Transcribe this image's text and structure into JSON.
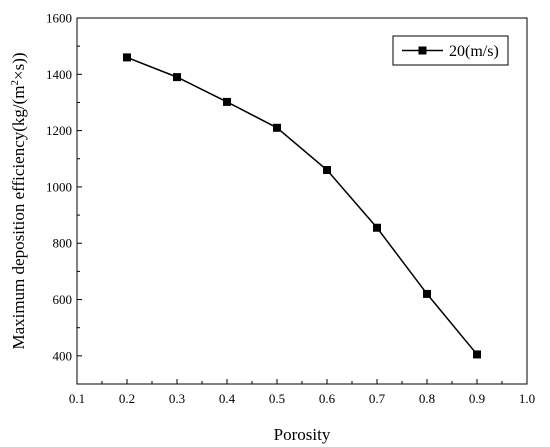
{
  "chart_data": {
    "type": "line",
    "title": "",
    "xlabel": "Porosity",
    "ylabel_main": "Maximum deposition efficiency(kg/(m",
    "ylabel_sup": "2",
    "ylabel_tail": "×s))",
    "xlim": [
      0.1,
      1.0
    ],
    "ylim": [
      300,
      1600
    ],
    "xticks": [
      "0.1",
      "0.2",
      "0.3",
      "0.4",
      "0.5",
      "0.6",
      "0.7",
      "0.8",
      "0.9",
      "1.0"
    ],
    "yticks": [
      "400",
      "600",
      "800",
      "1000",
      "1200",
      "1400",
      "1600"
    ],
    "legend_position": "top-right",
    "grid": false,
    "series": [
      {
        "name": "20(m/s)",
        "color": "#000000",
        "marker": "square",
        "x": [
          0.2,
          0.3,
          0.4,
          0.5,
          0.6,
          0.7,
          0.8,
          0.9
        ],
        "y": [
          1460,
          1390,
          1302,
          1210,
          1060,
          855,
          620,
          405
        ]
      }
    ]
  }
}
